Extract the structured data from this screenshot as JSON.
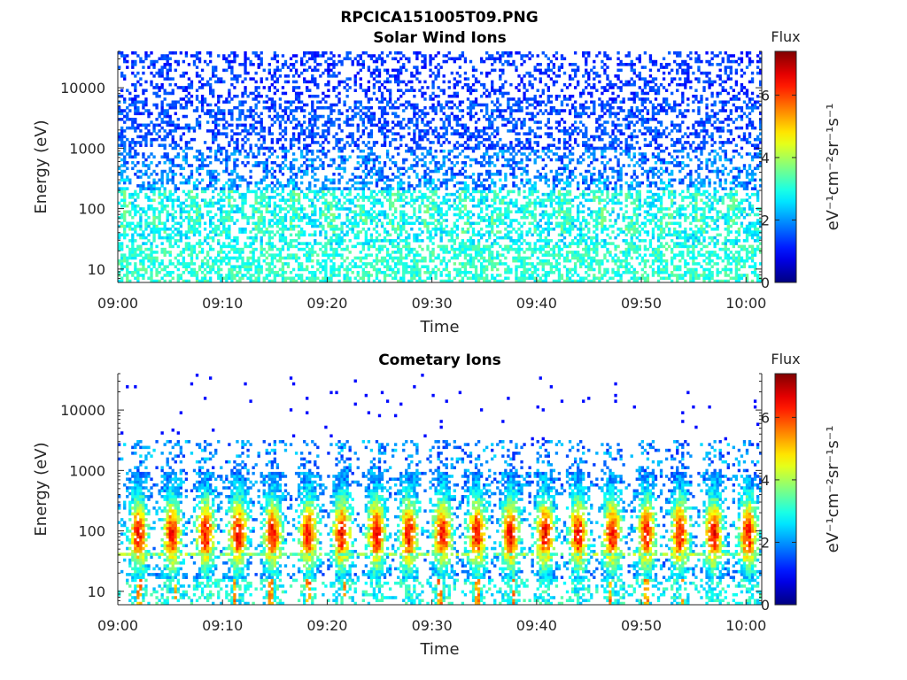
{
  "figure": {
    "title": "RPCICA151005T09.PNG"
  },
  "chart_data": [
    {
      "type": "heatmap",
      "title": "Solar Wind Ions",
      "xlabel": "Time",
      "ylabel": "Energy (eV)",
      "x_ticks": [
        "09:00",
        "09:10",
        "09:20",
        "09:30",
        "09:40",
        "09:50",
        "10:00"
      ],
      "x_range_minutes": [
        0,
        61.5
      ],
      "y_scale": "log",
      "y_ticks": [
        "10",
        "100",
        "1000",
        "10000"
      ],
      "y_range": [
        6,
        40000
      ],
      "colorbar": {
        "label_top": "Flux",
        "unit": "eV⁻¹cm⁻²sr⁻¹s⁻¹",
        "ticks": [
          "0",
          "2",
          "4",
          "6"
        ],
        "range": [
          0,
          7.4
        ]
      },
      "data_note": "spectrogram pixels approximated procedurally",
      "bursts_minutes": []
    },
    {
      "type": "heatmap",
      "title": "Cometary Ions",
      "xlabel": "Time",
      "ylabel": "Energy (eV)",
      "x_ticks": [
        "09:00",
        "09:10",
        "09:20",
        "09:30",
        "09:40",
        "09:50",
        "10:00"
      ],
      "x_range_minutes": [
        0,
        61.5
      ],
      "y_scale": "log",
      "y_ticks": [
        "10",
        "100",
        "1000",
        "10000"
      ],
      "y_range": [
        6,
        40000
      ],
      "colorbar": {
        "label_top": "Flux",
        "unit": "eV⁻¹cm⁻²sr⁻¹s⁻¹",
        "ticks": [
          "0",
          "2",
          "4",
          "6"
        ],
        "range": [
          0,
          7.4
        ]
      },
      "data_note": "spectrogram pixels approximated procedurally",
      "bursts_minutes": [
        2.0,
        5.2,
        8.4,
        11.5,
        14.8,
        18.2,
        21.4,
        24.7,
        27.8,
        31.0,
        34.3,
        37.5,
        40.8,
        44.0,
        47.2,
        50.5,
        53.7,
        56.9,
        60.2
      ]
    }
  ]
}
